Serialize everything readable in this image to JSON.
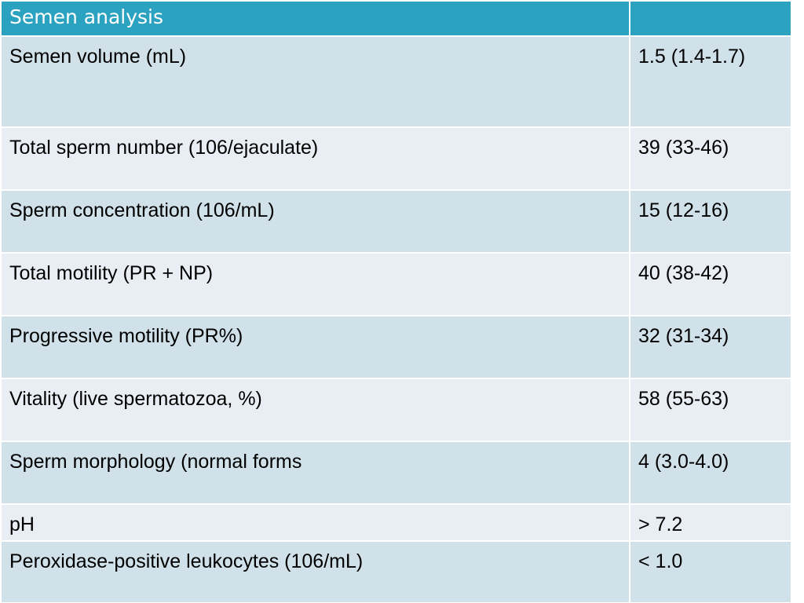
{
  "table": {
    "header": {
      "col1": "Semen analysis",
      "col2": ""
    },
    "rows": [
      {
        "parameter": "Semen volume (mL)",
        "value": "1.5 (1.4-1.7)"
      },
      {
        "parameter": "Total sperm number (106/ejaculate)",
        "value": "39 (33-46)"
      },
      {
        "parameter": "Sperm concentration (106/mL)",
        "value": "15 (12-16)"
      },
      {
        "parameter": "Total motility (PR + NP)",
        "value": "40 (38-42)"
      },
      {
        "parameter": "Progressive motility (PR%)",
        "value": "32 (31-34)"
      },
      {
        "parameter": "Vitality (live spermatozoa, %)",
        "value": "58 (55-63)"
      },
      {
        "parameter": "Sperm morphology (normal forms",
        "value": "4 (3.0-4.0)"
      },
      {
        "parameter": "pH",
        "value": "> 7.2"
      },
      {
        "parameter": "Peroxidase-positive leukocytes (106/mL)",
        "value": "< 1.0"
      }
    ]
  },
  "colors": {
    "header_bg": "#2ba2c0",
    "row_band_dark": "#d0e1e9",
    "row_band_light": "#e9eef5",
    "header_text": "#ffffff"
  }
}
